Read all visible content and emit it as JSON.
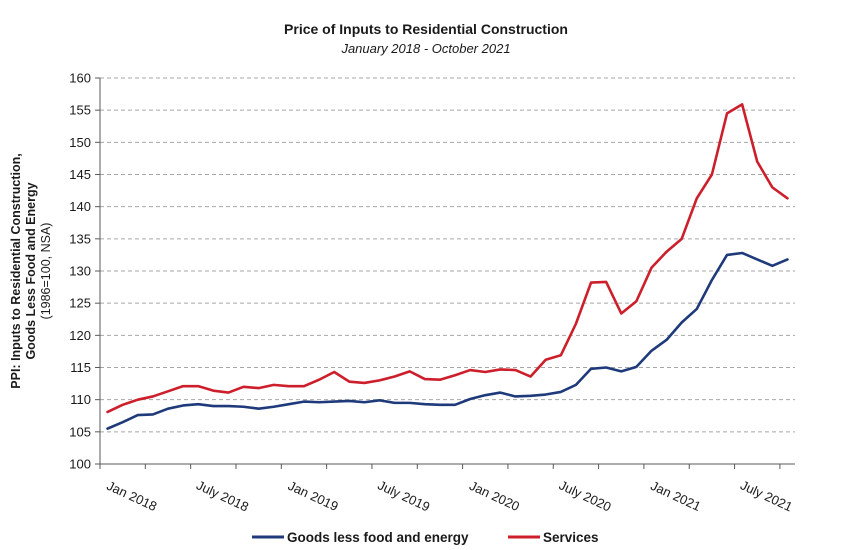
{
  "chart_data": {
    "type": "line",
    "title": "Price of Inputs to Residential Construction",
    "subtitle": "January 2018 - October 2021",
    "ylabel_line1": "PPI: Inputs to Residential Construction,",
    "ylabel_line2": "Goods Less Food and Energy",
    "ylabel_line3": "(1986=100, NSA)",
    "ylim": [
      100,
      160
    ],
    "yticks": [
      100,
      105,
      110,
      115,
      120,
      125,
      130,
      135,
      140,
      145,
      150,
      155,
      160
    ],
    "grid": true,
    "legend_position": "bottom",
    "x_tick_labels": [
      {
        "label": "Jan 2018",
        "index": 0
      },
      {
        "label": "July 2018",
        "index": 6
      },
      {
        "label": "Jan 2019",
        "index": 12
      },
      {
        "label": "July 2019",
        "index": 18
      },
      {
        "label": "Jan 2020",
        "index": 24
      },
      {
        "label": "July 2020",
        "index": 30
      },
      {
        "label": "Jan 2021",
        "index": 36
      },
      {
        "label": "July 2021",
        "index": 42
      }
    ],
    "x": [
      "2018-01",
      "2018-02",
      "2018-03",
      "2018-04",
      "2018-05",
      "2018-06",
      "2018-07",
      "2018-08",
      "2018-09",
      "2018-10",
      "2018-11",
      "2018-12",
      "2019-01",
      "2019-02",
      "2019-03",
      "2019-04",
      "2019-05",
      "2019-06",
      "2019-07",
      "2019-08",
      "2019-09",
      "2019-10",
      "2019-11",
      "2019-12",
      "2020-01",
      "2020-02",
      "2020-03",
      "2020-04",
      "2020-05",
      "2020-06",
      "2020-07",
      "2020-08",
      "2020-09",
      "2020-10",
      "2020-11",
      "2020-12",
      "2021-01",
      "2021-02",
      "2021-03",
      "2021-04",
      "2021-05",
      "2021-06",
      "2021-07",
      "2021-08",
      "2021-09",
      "2021-10"
    ],
    "series": [
      {
        "name": "Goods less food and energy",
        "color": "#1f3a7a",
        "values": [
          105.5,
          106.5,
          107.6,
          107.7,
          108.6,
          109.1,
          109.3,
          109.0,
          109.0,
          108.9,
          108.6,
          108.9,
          109.3,
          109.7,
          109.6,
          109.7,
          109.8,
          109.6,
          109.9,
          109.5,
          109.5,
          109.3,
          109.2,
          109.2,
          110.1,
          110.7,
          111.1,
          110.5,
          110.6,
          110.8,
          111.2,
          112.3,
          114.8,
          115.0,
          114.4,
          115.1,
          117.6,
          119.3,
          122.0,
          124.1,
          128.6,
          132.5,
          132.8,
          131.8,
          130.8,
          131.8
        ]
      },
      {
        "name": "Services",
        "color": "#cc1f2b",
        "values": [
          108.1,
          109.2,
          110.0,
          110.5,
          111.3,
          112.1,
          112.1,
          111.4,
          111.1,
          112.0,
          111.8,
          112.3,
          112.1,
          112.1,
          113.1,
          114.3,
          112.8,
          112.6,
          113.0,
          113.6,
          114.4,
          113.2,
          113.1,
          113.8,
          114.6,
          114.3,
          114.7,
          114.6,
          113.6,
          116.2,
          116.9,
          121.8,
          128.2,
          128.3,
          123.4,
          125.3,
          130.5,
          133.0,
          135.0,
          141.3,
          145.0,
          154.5,
          155.9,
          147.0,
          143.0,
          141.3
        ]
      }
    ]
  }
}
